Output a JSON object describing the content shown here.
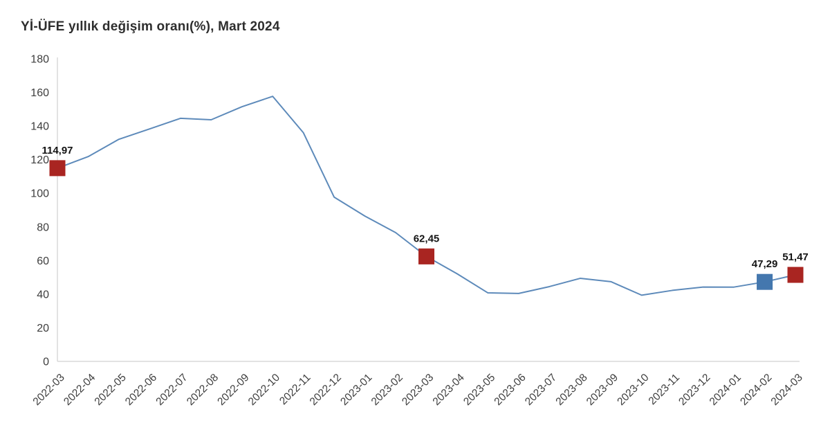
{
  "page": {
    "title": "Yİ-ÜFE yıllık değişim oranı(%), Mart 2024"
  },
  "chart_data": {
    "type": "line",
    "title": "Yİ-ÜFE yıllık değişim oranı(%), Mart 2024",
    "xlabel": "",
    "ylabel": "",
    "categories": [
      "2022-03",
      "2022-04",
      "2022-05",
      "2022-06",
      "2022-07",
      "2022-08",
      "2022-09",
      "2022-10",
      "2022-11",
      "2022-12",
      "2023-01",
      "2023-02",
      "2023-03",
      "2023-04",
      "2023-05",
      "2023-06",
      "2023-07",
      "2023-08",
      "2023-09",
      "2023-10",
      "2023-11",
      "2023-12",
      "2024-01",
      "2024-02",
      "2024-03"
    ],
    "values": [
      114.97,
      121.82,
      132.16,
      138.31,
      144.61,
      143.75,
      151.5,
      157.69,
      136.02,
      97.72,
      86.46,
      76.61,
      62.45,
      52.11,
      40.76,
      40.42,
      44.5,
      49.41,
      47.44,
      39.39,
      42.25,
      44.22,
      44.2,
      47.29,
      51.47
    ],
    "ylim": [
      0,
      180
    ],
    "ytick_step": 20,
    "grid": false,
    "legend": "none",
    "line_color": "#5d8aba",
    "axis_line_color": "#d8d8d8",
    "annotated_points": [
      {
        "index": 0,
        "category": "2022-03",
        "value": 114.97,
        "label": "114,97",
        "marker_color": "#a92521",
        "marker_shape": "square"
      },
      {
        "index": 12,
        "category": "2023-03",
        "value": 62.45,
        "label": "62,45",
        "marker_color": "#a92521",
        "marker_shape": "square"
      },
      {
        "index": 23,
        "category": "2024-02",
        "value": 47.29,
        "label": "47,29",
        "marker_color": "#4477ae",
        "marker_shape": "square"
      },
      {
        "index": 24,
        "category": "2024-03",
        "value": 51.47,
        "label": "51,47",
        "marker_color": "#a92521",
        "marker_shape": "square"
      }
    ]
  }
}
